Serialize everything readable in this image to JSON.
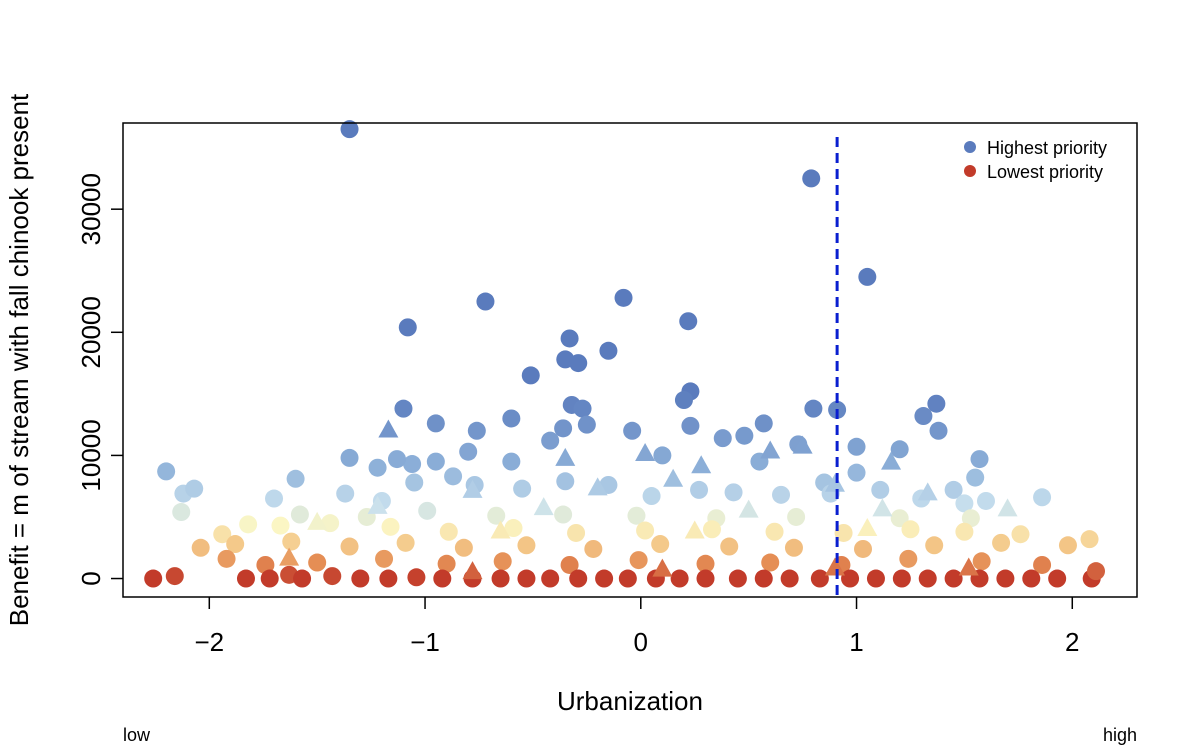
{
  "chart_data": {
    "type": "scatter",
    "title": "",
    "xlabel": "Urbanization",
    "ylabel": "Benefit = m of stream with fall chinook present",
    "x_range_labels": {
      "low": "low",
      "high": "high"
    },
    "xlim": [
      -2.4,
      2.3
    ],
    "ylim": [
      -1500,
      37000
    ],
    "xticks": [
      -2,
      -1,
      0,
      1,
      2
    ],
    "xtick_labels": [
      "−2",
      "−1",
      "0",
      "1",
      "2"
    ],
    "yticks": [
      0,
      10000,
      20000,
      30000
    ],
    "ytick_labels": [
      "0",
      "10000",
      "20000",
      "30000"
    ],
    "grid": false,
    "legend_position": "top-right",
    "legend": [
      {
        "label": "Highest priority",
        "color": "#5a7bbd"
      },
      {
        "label": "Lowest priority",
        "color": "#c23b2a"
      }
    ],
    "threshold_line": {
      "x": 0.91,
      "color": "#0a1fd0",
      "style": "dashed"
    },
    "color_scale": [
      "#5a7bbd",
      "#8eb1d9",
      "#c8e0ee",
      "#fbf6c4",
      "#f4c98a",
      "#e58e55",
      "#c23b2a"
    ],
    "marker_shapes": [
      "circle",
      "triangle"
    ],
    "series": [
      {
        "shape": "circle",
        "points": [
          [
            -1.35,
            36500
          ],
          [
            0.79,
            32500
          ],
          [
            1.05,
            24500
          ],
          [
            -0.08,
            22800
          ],
          [
            -0.72,
            22500
          ],
          [
            -1.08,
            20400
          ],
          [
            0.22,
            20900
          ],
          [
            -0.33,
            19500
          ],
          [
            -0.15,
            18500
          ],
          [
            -0.35,
            17800
          ],
          [
            -0.29,
            17500
          ],
          [
            -0.51,
            16500
          ],
          [
            0.23,
            15200
          ],
          [
            -1.1,
            13800
          ],
          [
            0.2,
            14500
          ],
          [
            -0.32,
            14100
          ],
          [
            0.8,
            13800
          ],
          [
            0.91,
            13700
          ],
          [
            1.37,
            14200
          ],
          [
            1.31,
            13200
          ],
          [
            -0.6,
            13000
          ],
          [
            -0.27,
            13800
          ],
          [
            -0.76,
            12000
          ],
          [
            -0.25,
            12500
          ],
          [
            -0.95,
            12600
          ],
          [
            0.57,
            12600
          ],
          [
            0.23,
            12400
          ],
          [
            -0.36,
            12200
          ],
          [
            -0.42,
            11200
          ],
          [
            -0.04,
            12000
          ],
          [
            0.38,
            11400
          ],
          [
            0.48,
            11600
          ],
          [
            1.0,
            10700
          ],
          [
            1.38,
            12000
          ],
          [
            1.2,
            10500
          ],
          [
            -1.35,
            9800
          ],
          [
            -1.22,
            9000
          ],
          [
            -1.06,
            9300
          ],
          [
            -0.95,
            9500
          ],
          [
            -0.8,
            10300
          ],
          [
            -0.6,
            9500
          ],
          [
            0.1,
            10000
          ],
          [
            0.55,
            9500
          ],
          [
            0.73,
            10900
          ],
          [
            1.0,
            8600
          ],
          [
            1.57,
            9700
          ],
          [
            -1.13,
            9700
          ],
          [
            0.85,
            7800
          ],
          [
            1.45,
            7200
          ],
          [
            1.55,
            8200
          ],
          [
            -2.2,
            8700
          ],
          [
            -1.6,
            8100
          ],
          [
            -2.12,
            6900
          ],
          [
            -2.07,
            7300
          ],
          [
            -1.7,
            6500
          ],
          [
            -1.37,
            6900
          ],
          [
            -1.2,
            6300
          ],
          [
            -1.05,
            7800
          ],
          [
            -0.87,
            8300
          ],
          [
            -0.77,
            7600
          ],
          [
            -0.55,
            7300
          ],
          [
            -0.35,
            7900
          ],
          [
            -0.15,
            7600
          ],
          [
            0.05,
            6700
          ],
          [
            0.27,
            7200
          ],
          [
            0.43,
            7000
          ],
          [
            0.65,
            6800
          ],
          [
            0.88,
            6900
          ],
          [
            1.11,
            7200
          ],
          [
            1.3,
            6500
          ],
          [
            1.5,
            6100
          ],
          [
            1.6,
            6300
          ],
          [
            1.86,
            6600
          ],
          [
            -2.13,
            5400
          ],
          [
            -1.58,
            5200
          ],
          [
            -1.27,
            5000
          ],
          [
            -0.99,
            5500
          ],
          [
            -0.67,
            5100
          ],
          [
            -0.36,
            5200
          ],
          [
            -0.02,
            5100
          ],
          [
            0.35,
            4900
          ],
          [
            0.72,
            5000
          ],
          [
            1.2,
            4900
          ],
          [
            1.53,
            4900
          ],
          [
            -1.94,
            3600
          ],
          [
            -1.82,
            4400
          ],
          [
            -1.67,
            4300
          ],
          [
            -1.44,
            4500
          ],
          [
            -1.16,
            4200
          ],
          [
            -0.89,
            3800
          ],
          [
            -0.59,
            4100
          ],
          [
            -0.3,
            3700
          ],
          [
            0.02,
            3900
          ],
          [
            0.33,
            4000
          ],
          [
            0.62,
            3800
          ],
          [
            0.94,
            3700
          ],
          [
            1.25,
            4000
          ],
          [
            1.5,
            3800
          ],
          [
            1.76,
            3600
          ],
          [
            -2.04,
            2500
          ],
          [
            -1.88,
            2800
          ],
          [
            -1.62,
            3000
          ],
          [
            -1.35,
            2600
          ],
          [
            -1.09,
            2900
          ],
          [
            -0.82,
            2500
          ],
          [
            -0.53,
            2700
          ],
          [
            -0.22,
            2400
          ],
          [
            0.09,
            2800
          ],
          [
            0.41,
            2600
          ],
          [
            0.71,
            2500
          ],
          [
            1.03,
            2400
          ],
          [
            1.36,
            2700
          ],
          [
            1.67,
            2900
          ],
          [
            1.98,
            2700
          ],
          [
            2.08,
            3200
          ],
          [
            -1.92,
            1600
          ],
          [
            -1.74,
            1100
          ],
          [
            -1.5,
            1300
          ],
          [
            -1.19,
            1600
          ],
          [
            -0.9,
            1200
          ],
          [
            -0.64,
            1400
          ],
          [
            -0.33,
            1100
          ],
          [
            -0.01,
            1500
          ],
          [
            0.3,
            1200
          ],
          [
            0.6,
            1300
          ],
          [
            0.93,
            1100
          ],
          [
            1.24,
            1600
          ],
          [
            1.58,
            1400
          ],
          [
            1.86,
            1100
          ],
          [
            -2.26,
            0
          ],
          [
            -2.16,
            200
          ],
          [
            -1.83,
            0
          ],
          [
            -1.72,
            0
          ],
          [
            -1.63,
            300
          ],
          [
            -1.57,
            0
          ],
          [
            -1.43,
            200
          ],
          [
            -1.3,
            0
          ],
          [
            -1.17,
            0
          ],
          [
            -1.04,
            100
          ],
          [
            -0.92,
            0
          ],
          [
            -0.78,
            0
          ],
          [
            -0.65,
            0
          ],
          [
            -0.53,
            0
          ],
          [
            -0.42,
            0
          ],
          [
            -0.29,
            0
          ],
          [
            -0.17,
            0
          ],
          [
            -0.06,
            0
          ],
          [
            0.07,
            0
          ],
          [
            0.18,
            0
          ],
          [
            0.3,
            0
          ],
          [
            0.45,
            0
          ],
          [
            0.57,
            0
          ],
          [
            0.69,
            0
          ],
          [
            0.83,
            0
          ],
          [
            0.97,
            0
          ],
          [
            1.09,
            0
          ],
          [
            1.21,
            0
          ],
          [
            1.33,
            0
          ],
          [
            1.45,
            0
          ],
          [
            1.57,
            0
          ],
          [
            1.69,
            0
          ],
          [
            1.81,
            0
          ],
          [
            1.93,
            0
          ],
          [
            2.09,
            0
          ],
          [
            2.11,
            600
          ]
        ]
      },
      {
        "shape": "triangle",
        "points": [
          [
            -1.17,
            12100
          ],
          [
            -0.35,
            9800
          ],
          [
            0.02,
            10200
          ],
          [
            0.28,
            9200
          ],
          [
            0.6,
            10400
          ],
          [
            0.75,
            10800
          ],
          [
            1.16,
            9500
          ],
          [
            -0.78,
            7200
          ],
          [
            -0.2,
            7400
          ],
          [
            0.15,
            8100
          ],
          [
            0.9,
            7700
          ],
          [
            1.33,
            7000
          ],
          [
            -1.22,
            5900
          ],
          [
            -0.45,
            5800
          ],
          [
            0.5,
            5600
          ],
          [
            1.12,
            5700
          ],
          [
            1.7,
            5700
          ],
          [
            -1.5,
            4600
          ],
          [
            -0.65,
            3900
          ],
          [
            0.25,
            3900
          ],
          [
            1.05,
            4100
          ],
          [
            -1.63,
            1700
          ],
          [
            -0.78,
            600
          ],
          [
            0.1,
            800
          ],
          [
            0.9,
            900
          ],
          [
            1.52,
            900
          ]
        ]
      }
    ]
  }
}
